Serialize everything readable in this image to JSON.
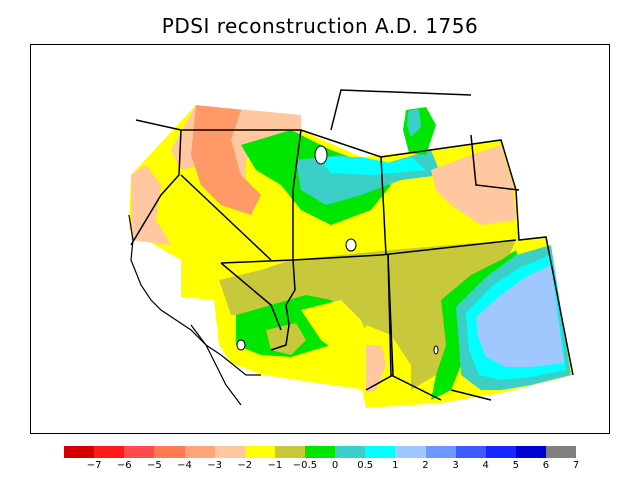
{
  "title": "PDSI reconstruction A.D. 1756",
  "legend": {
    "colors": [
      "#d20000",
      "#ff1a1a",
      "#ff4b4b",
      "#ff7a50",
      "#ffa478",
      "#ffc8a0",
      "#ffff00",
      "#c8c83c",
      "#00e600",
      "#3ccfc8",
      "#00ffff",
      "#a0c8ff",
      "#6e96ff",
      "#3c5aff",
      "#1428ff",
      "#0000d0",
      "#808080"
    ],
    "labels": [
      "−7",
      "−6",
      "−5",
      "−4",
      "−3",
      "−2",
      "−1",
      "−0.5",
      "0",
      "0.5",
      "1",
      "2",
      "3",
      "4",
      "5",
      "6",
      "7"
    ]
  },
  "map": {
    "region": "Western United States",
    "colors": {
      "dry_strong": "#ff7a50",
      "dry_moderate": "#ffc8a0",
      "near_normal_dry": "#ffff00",
      "slightly_dry": "#c8c83c",
      "near_normal_wet": "#00e600",
      "wet": "#3ccfc8",
      "wetter": "#00ffff",
      "very_wet": "#a0c8ff"
    }
  }
}
